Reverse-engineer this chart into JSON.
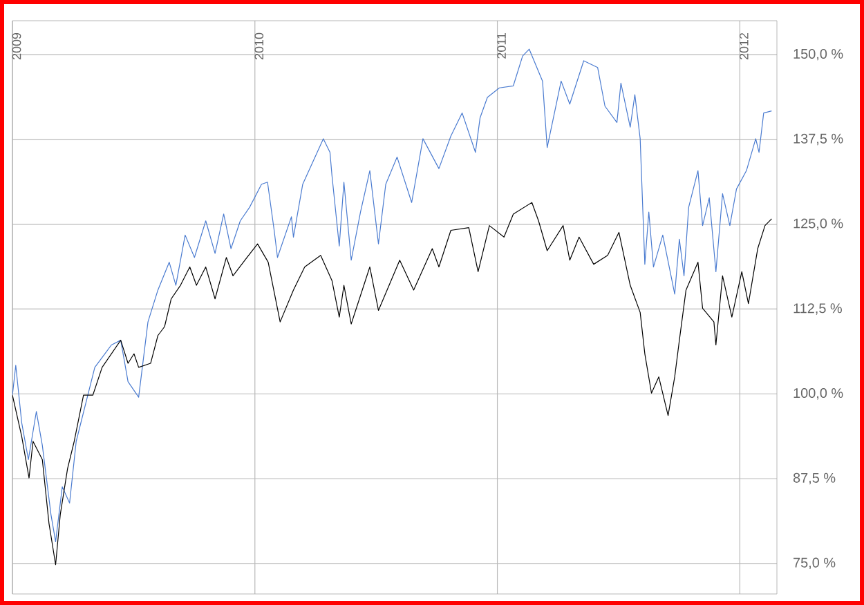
{
  "chart_data": {
    "type": "line",
    "xlim": [
      "2009-01-01",
      "2012-02-26"
    ],
    "xticks": [
      "2009",
      "2010",
      "2011",
      "2012"
    ],
    "ylim": [
      70.5,
      155
    ],
    "yticks": [
      {
        "value": 75,
        "label": "75,0 %"
      },
      {
        "value": 87.5,
        "label": "87,5 %"
      },
      {
        "value": 100,
        "label": "100,0 %"
      },
      {
        "value": 112.5,
        "label": "112,5 %"
      },
      {
        "value": 125,
        "label": "125,0 %"
      },
      {
        "value": 137.5,
        "label": "137,5 %"
      },
      {
        "value": 150,
        "label": "150,0 %"
      }
    ],
    "grid": true,
    "marker": "none",
    "line_style": "solid",
    "series": [
      {
        "color": "#4a7bd0",
        "x": [
          "2009-01-01",
          "2009-01-06",
          "2009-01-15",
          "2009-01-25",
          "2009-02-06",
          "2009-02-15",
          "2009-02-28",
          "2009-03-07",
          "2009-03-17",
          "2009-03-28",
          "2009-04-07",
          "2009-05-05",
          "2009-05-30",
          "2009-06-13",
          "2009-06-24",
          "2009-07-10",
          "2009-07-24",
          "2009-08-08",
          "2009-08-25",
          "2009-09-04",
          "2009-09-18",
          "2009-10-02",
          "2009-10-19",
          "2009-11-02",
          "2009-11-15",
          "2009-11-26",
          "2009-12-10",
          "2009-12-24",
          "2010-01-11",
          "2010-01-20",
          "2010-01-30",
          "2010-02-04",
          "2010-02-25",
          "2010-02-28",
          "2010-03-14",
          "2010-04-14",
          "2010-04-24",
          "2010-04-27",
          "2010-05-08",
          "2010-05-15",
          "2010-05-26",
          "2010-06-09",
          "2010-06-23",
          "2010-07-06",
          "2010-07-17",
          "2010-08-03",
          "2010-08-25",
          "2010-09-11",
          "2010-10-05",
          "2010-10-23",
          "2010-11-09",
          "2010-11-29",
          "2010-12-06",
          "2010-12-17",
          "2011-01-04",
          "2011-01-25",
          "2011-02-08",
          "2011-02-18",
          "2011-03-10",
          "2011-03-17",
          "2011-04-07",
          "2011-04-20",
          "2011-05-11",
          "2011-06-01",
          "2011-06-12",
          "2011-06-30",
          "2011-07-06",
          "2011-07-20",
          "2011-07-27",
          "2011-08-04",
          "2011-08-11",
          "2011-08-17",
          "2011-08-24",
          "2011-09-07",
          "2011-09-25",
          "2011-10-02",
          "2011-10-09",
          "2011-10-16",
          "2011-10-30",
          "2011-11-06",
          "2011-11-16",
          "2011-11-26",
          "2011-12-06",
          "2011-12-17",
          "2011-12-27",
          "2012-01-11",
          "2012-01-25",
          "2012-01-30",
          "2012-02-06",
          "2012-02-18"
        ],
        "values": [
          99.8,
          104.2,
          95.7,
          90.3,
          97.4,
          92.4,
          82.2,
          78.2,
          86.3,
          83.9,
          93.0,
          103.9,
          107.2,
          107.9,
          101.8,
          99.5,
          110.6,
          115.3,
          119.4,
          116.0,
          123.4,
          120.1,
          125.5,
          120.7,
          126.5,
          121.4,
          125.5,
          127.5,
          130.9,
          131.2,
          124.1,
          120.1,
          126.1,
          123.1,
          130.9,
          137.6,
          135.6,
          132.2,
          121.8,
          131.2,
          119.7,
          126.8,
          132.9,
          122.1,
          130.9,
          134.9,
          128.2,
          137.6,
          133.2,
          138.0,
          141.4,
          135.6,
          140.7,
          143.7,
          145.1,
          145.4,
          149.8,
          150.8,
          146.1,
          136.3,
          146.1,
          142.7,
          149.1,
          148.1,
          142.4,
          140.0,
          145.8,
          139.3,
          144.1,
          137.6,
          119.1,
          126.8,
          118.7,
          123.4,
          114.7,
          122.8,
          117.4,
          127.5,
          132.9,
          124.8,
          128.9,
          118.0,
          129.5,
          124.8,
          130.2,
          132.9,
          137.6,
          135.6,
          141.4,
          141.7
        ]
      },
      {
        "color": "#000000",
        "x": [
          "2009-01-01",
          "2009-01-15",
          "2009-01-26",
          "2009-02-01",
          "2009-02-15",
          "2009-02-25",
          "2009-03-07",
          "2009-03-14",
          "2009-03-25",
          "2009-04-04",
          "2009-04-18",
          "2009-05-02",
          "2009-05-16",
          "2009-06-13",
          "2009-06-24",
          "2009-07-03",
          "2009-07-10",
          "2009-07-28",
          "2009-08-08",
          "2009-08-18",
          "2009-08-28",
          "2009-09-11",
          "2009-09-25",
          "2009-10-05",
          "2009-10-19",
          "2009-11-02",
          "2009-11-19",
          "2009-11-29",
          "2009-12-20",
          "2010-01-05",
          "2010-01-21",
          "2010-02-08",
          "2010-02-28",
          "2010-03-17",
          "2010-04-10",
          "2010-04-27",
          "2010-05-08",
          "2010-05-15",
          "2010-05-26",
          "2010-06-23",
          "2010-07-06",
          "2010-08-07",
          "2010-08-28",
          "2010-09-25",
          "2010-10-05",
          "2010-10-23",
          "2010-11-19",
          "2010-12-03",
          "2010-12-20",
          "2011-01-11",
          "2011-01-25",
          "2011-02-22",
          "2011-03-04",
          "2011-03-17",
          "2011-04-10",
          "2011-04-20",
          "2011-05-04",
          "2011-05-26",
          "2011-06-16",
          "2011-07-03",
          "2011-07-20",
          "2011-08-04",
          "2011-08-11",
          "2011-08-21",
          "2011-09-01",
          "2011-09-15",
          "2011-09-25",
          "2011-10-02",
          "2011-10-12",
          "2011-10-30",
          "2011-11-06",
          "2011-11-23",
          "2011-11-26",
          "2011-12-06",
          "2011-12-20",
          "2012-01-04",
          "2012-01-14",
          "2012-01-28",
          "2012-02-08",
          "2012-02-18"
        ],
        "values": [
          99.8,
          93.7,
          87.6,
          93.0,
          90.3,
          80.9,
          74.8,
          82.2,
          89.0,
          93.0,
          99.8,
          99.8,
          103.9,
          107.9,
          104.5,
          105.9,
          103.9,
          104.5,
          108.6,
          109.9,
          114.0,
          116.0,
          118.7,
          116.0,
          118.7,
          114.0,
          120.1,
          117.4,
          120.1,
          122.1,
          119.4,
          110.6,
          115.3,
          118.7,
          120.4,
          116.7,
          111.3,
          116.0,
          110.3,
          118.7,
          112.3,
          119.7,
          115.3,
          121.4,
          118.7,
          124.1,
          124.5,
          118.0,
          124.8,
          123.1,
          126.5,
          128.2,
          125.5,
          121.1,
          124.8,
          119.7,
          123.1,
          119.1,
          120.4,
          123.8,
          116.0,
          112.0,
          105.9,
          100.1,
          102.5,
          96.8,
          102.5,
          107.9,
          115.3,
          119.4,
          112.6,
          110.6,
          107.2,
          117.4,
          111.3,
          118.0,
          113.3,
          121.4,
          124.8,
          125.8
        ]
      }
    ]
  }
}
